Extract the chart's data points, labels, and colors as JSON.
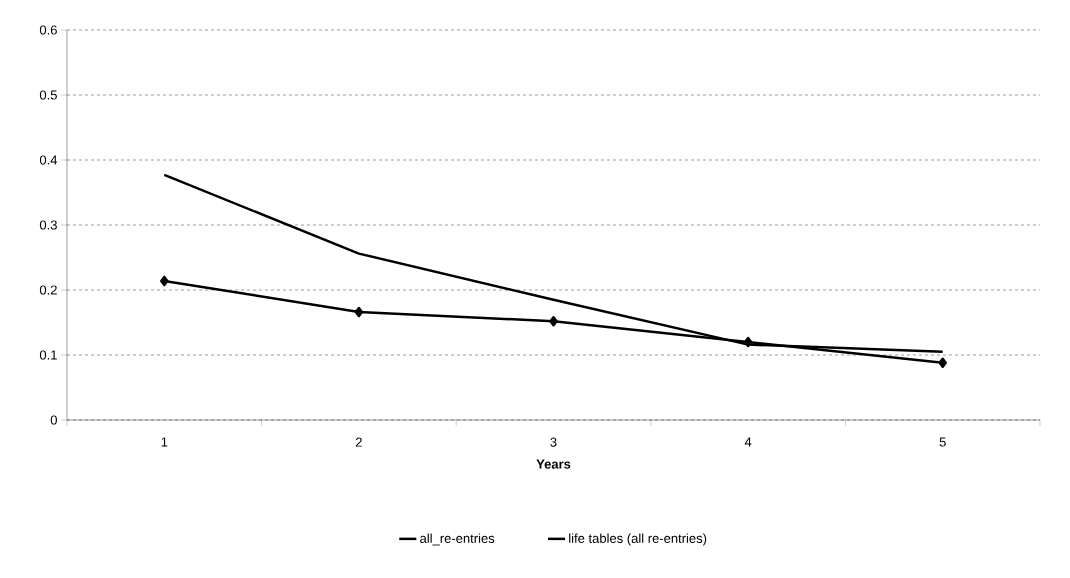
{
  "chart_data": {
    "type": "line",
    "xlabel": "Years",
    "categories": [
      "1",
      "2",
      "3",
      "4",
      "5"
    ],
    "series": [
      {
        "name": "all_re-entries",
        "color": "#000000",
        "marker": "diamond",
        "values": [
          0.214,
          0.166,
          0.152,
          0.12,
          0.088
        ]
      },
      {
        "name": "life tables (all re-entries)",
        "color": "#000000",
        "marker": "none",
        "values": [
          0.377,
          0.256,
          0.185,
          0.116,
          0.105
        ]
      }
    ],
    "ylim": [
      0,
      0.6
    ],
    "yticks": [
      0,
      0.1,
      0.2,
      0.3,
      0.4,
      0.5,
      0.6
    ],
    "grid": "y",
    "legend": "bottom",
    "line_style": "solid"
  }
}
